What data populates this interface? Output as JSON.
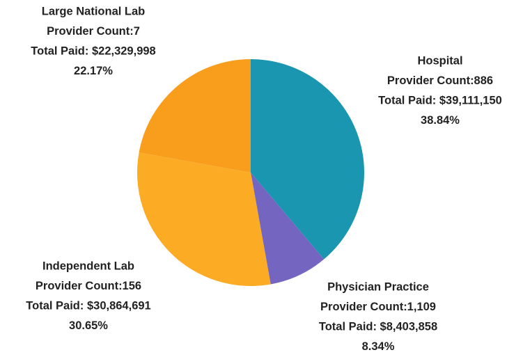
{
  "chart_data": {
    "type": "pie",
    "categories": [
      "Hospital",
      "Physician Practice",
      "Independent Lab",
      "Large National Lab"
    ],
    "values": [
      38.84,
      8.34,
      30.65,
      22.17
    ],
    "value_labels": [
      "38.84%",
      "8.34%",
      "30.65%",
      "22.17%"
    ],
    "provider_count_labels": [
      "Provider Count:886",
      "Provider Count:1,109",
      "Provider Count:156",
      "Provider Count:7"
    ],
    "total_paid_labels": [
      "Total Paid: $39,111,150",
      "Total Paid: $8,403,858",
      "Total Paid: $30,864,691",
      "Total Paid: $22,329,998"
    ],
    "colors": [
      "#1a96b0",
      "#7466c0",
      "#fbab24",
      "#f99d1c"
    ]
  }
}
